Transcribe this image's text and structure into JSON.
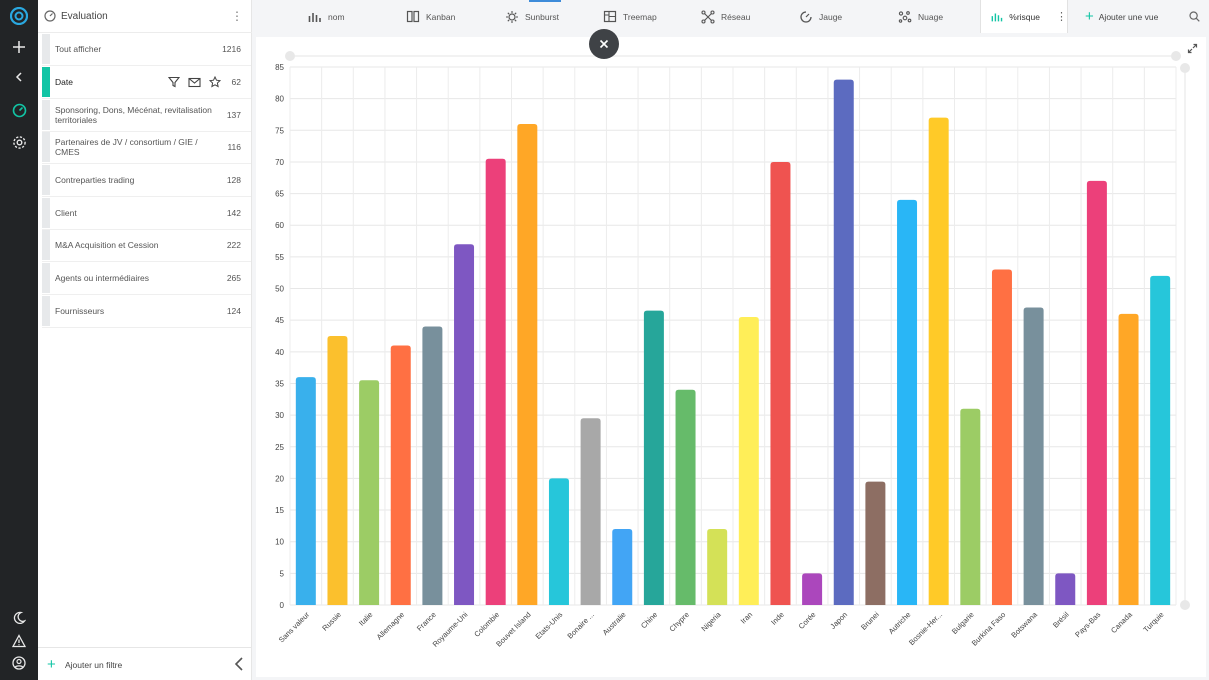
{
  "panel": {
    "title": "Evaluation",
    "filters": [
      {
        "label": "Tout afficher",
        "count": "1216"
      },
      {
        "label": "Date",
        "count": "62",
        "active": true
      },
      {
        "label": "Sponsoring, Dons, Mécénat, revitalisation territoriales",
        "count": "137"
      },
      {
        "label": "Partenaires de JV / consortium / GIE / CMES",
        "count": "116"
      },
      {
        "label": "Contreparties trading",
        "count": "128"
      },
      {
        "label": "Client",
        "count": "142"
      },
      {
        "label": "M&A Acquisition et Cession",
        "count": "222"
      },
      {
        "label": "Agents ou intermédiaires",
        "count": "265"
      },
      {
        "label": "Fournisseurs",
        "count": "124"
      }
    ],
    "add_filter_label": "Ajouter un filtre"
  },
  "tabs": [
    {
      "label": "nom",
      "icon": "bar-chart-icon"
    },
    {
      "label": "Kanban",
      "icon": "kanban-icon"
    },
    {
      "label": "Sunburst",
      "icon": "sunburst-icon"
    },
    {
      "label": "Treemap",
      "icon": "treemap-icon"
    },
    {
      "label": "Réseau",
      "icon": "network-icon"
    },
    {
      "label": "Jauge",
      "icon": "gauge-icon"
    },
    {
      "label": "Nuage",
      "icon": "cloud-icon"
    },
    {
      "label": "%risque",
      "icon": "bar-chart-icon",
      "active": true
    }
  ],
  "add_view_label": "Ajouter une vue",
  "colors": {
    "accent": "#12c5a5",
    "rail": "#222426",
    "tab_active_icon": "#12c5a5"
  },
  "chart_data": {
    "type": "bar",
    "ylim": [
      0,
      85
    ],
    "yticks": [
      0,
      5,
      10,
      15,
      20,
      25,
      30,
      35,
      40,
      45,
      50,
      55,
      60,
      65,
      70,
      75,
      80,
      85
    ],
    "grid": true,
    "categories": [
      "Sans valeur",
      "Russie",
      "Italie",
      "Allemagne",
      "France",
      "Royaume-Uni",
      "Colombie",
      "Bouvet Island",
      "Etats-Unis",
      "Bonaire ...",
      "Australie",
      "Chine",
      "Chypre",
      "Nigeria",
      "Iran",
      "Inde",
      "Corée",
      "Japon",
      "Brunei",
      "Autriche",
      "Bosnie-Her...",
      "Bulgarie",
      "Burkina Faso",
      "Botswana",
      "Brésil",
      "Pays-Bas",
      "Canada",
      "Turquie"
    ],
    "values": [
      36,
      42.5,
      35.5,
      41,
      44,
      57,
      70.5,
      76,
      20,
      29.5,
      12,
      46.5,
      34,
      12,
      45.5,
      70,
      5,
      83,
      19.5,
      64,
      77,
      31,
      53,
      47,
      5,
      67,
      46,
      52
    ],
    "colors": [
      "#39b0ec",
      "#fbc02d",
      "#9ccc65",
      "#ff7043",
      "#78909c",
      "#7e57c2",
      "#ec407a",
      "#ffa726",
      "#26c6da",
      "#a8a8a8",
      "#42a5f5",
      "#26a69a",
      "#66bb6a",
      "#d4e157",
      "#ffee58",
      "#ef5350",
      "#ab47bc",
      "#5c6bc0",
      "#8d6e63",
      "#29b6f6",
      "#ffca28",
      "#9ccc65",
      "#ff7043",
      "#78909c",
      "#7e57c2",
      "#ec407a",
      "#ffa726",
      "#26c6da"
    ]
  }
}
